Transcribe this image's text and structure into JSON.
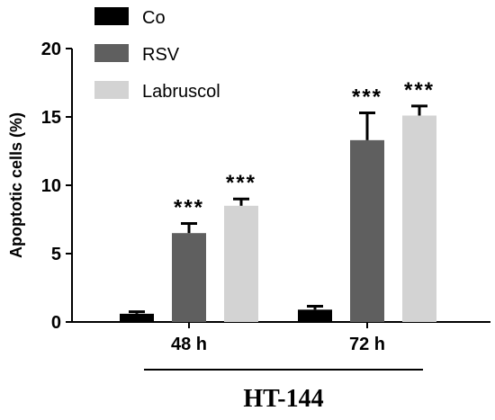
{
  "chart_data": {
    "type": "bar",
    "title": "HT-144",
    "ylabel": "Apoptotic cells (%)",
    "xlabel": "",
    "ylim": [
      0,
      20
    ],
    "yticks": [
      0,
      5,
      10,
      15,
      20
    ],
    "categories": [
      "48 h",
      "72 h"
    ],
    "series": [
      {
        "name": "Co",
        "color": "#000000",
        "values": [
          0.6,
          0.9
        ],
        "errors": [
          0.15,
          0.25
        ]
      },
      {
        "name": "RSV",
        "color": "#5f5f5f",
        "values": [
          6.5,
          13.3
        ],
        "errors": [
          0.7,
          2.0
        ]
      },
      {
        "name": "Labruscol",
        "color": "#d3d3d3",
        "values": [
          8.5,
          15.1
        ],
        "errors": [
          0.5,
          0.7
        ]
      }
    ],
    "significance": [
      {
        "category": 0,
        "series": 1,
        "label": "***"
      },
      {
        "category": 0,
        "series": 2,
        "label": "***"
      },
      {
        "category": 1,
        "series": 1,
        "label": "***"
      },
      {
        "category": 1,
        "series": 2,
        "label": "***"
      }
    ],
    "legend": "top-left",
    "grid": false
  }
}
